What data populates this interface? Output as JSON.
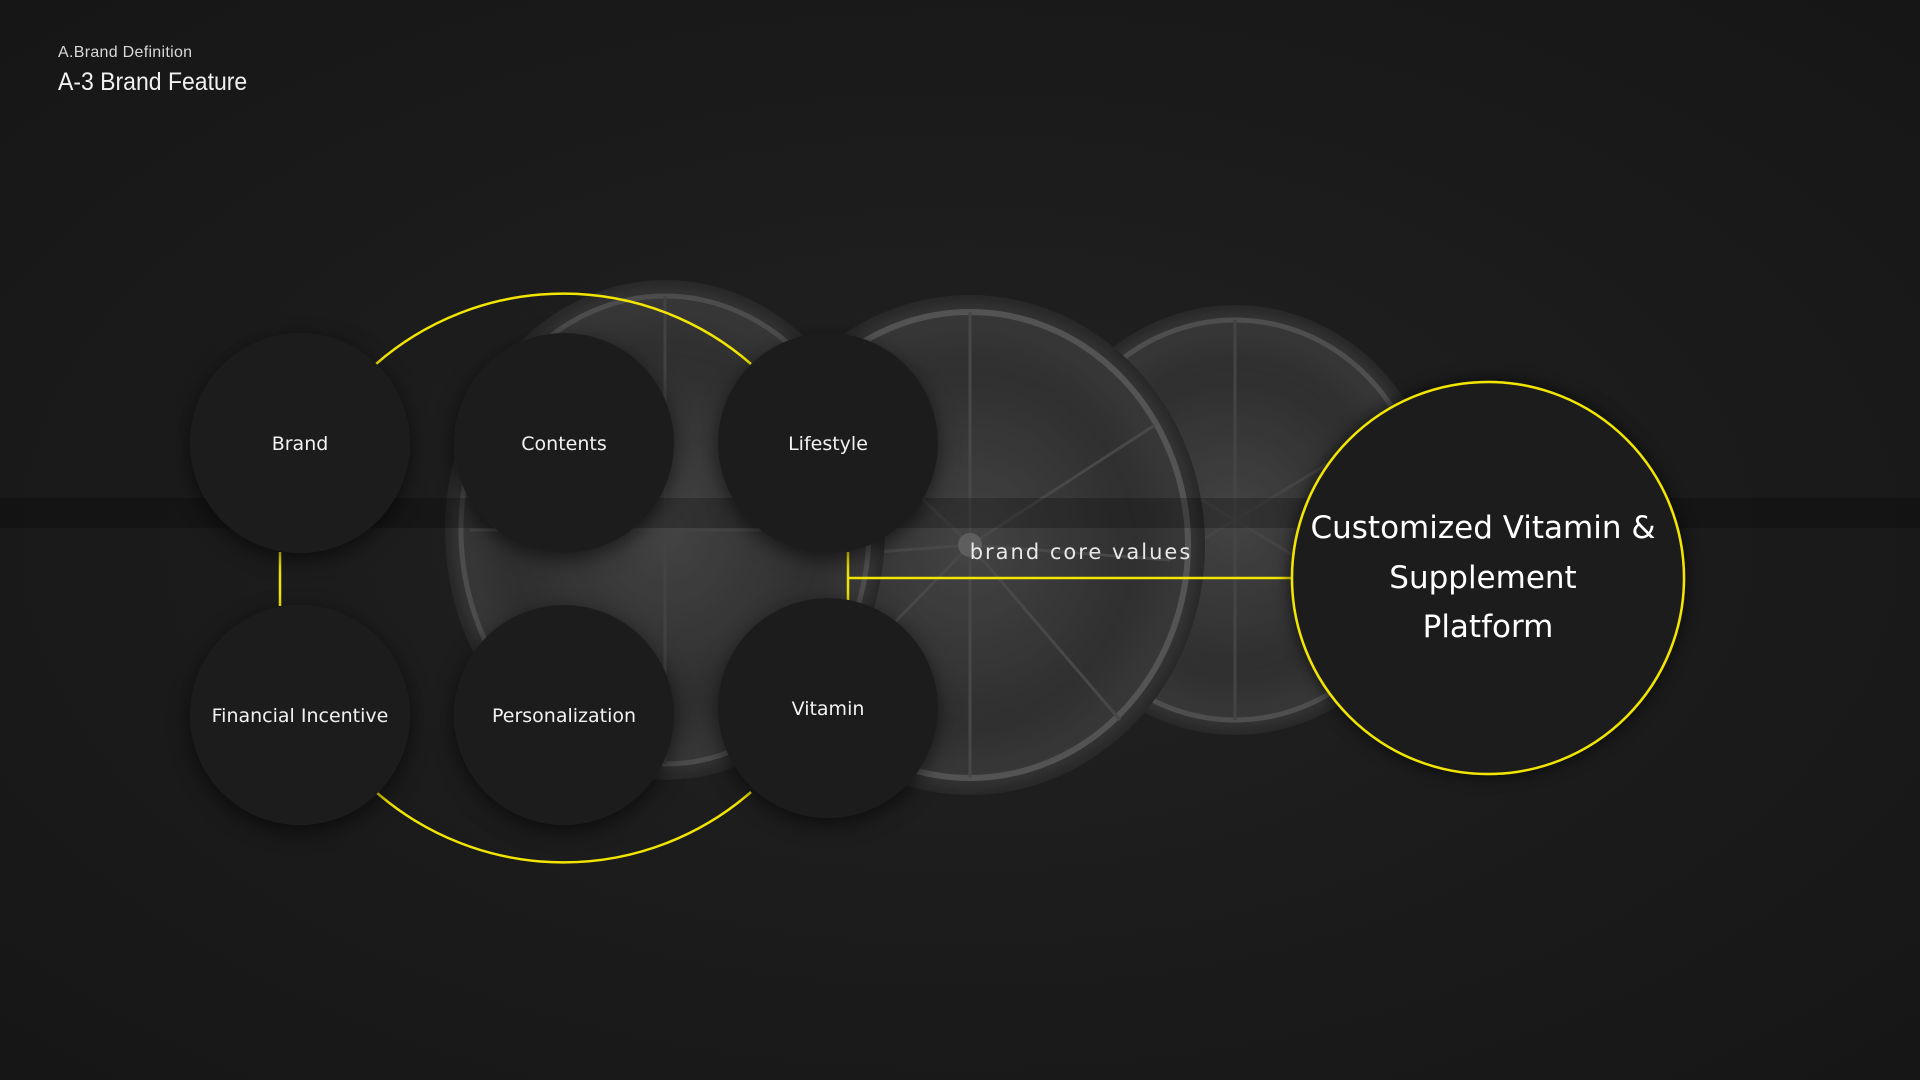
{
  "header": {
    "section": "A.Brand Definition",
    "title": "A-3 Brand Feature"
  },
  "diagram": {
    "nodes": [
      {
        "id": "brand",
        "label": "Brand"
      },
      {
        "id": "contents",
        "label": "Contents"
      },
      {
        "id": "lifestyle",
        "label": "Lifestyle"
      },
      {
        "id": "financial",
        "label": "Financial Incentive"
      },
      {
        "id": "personalization",
        "label": "Personalization"
      },
      {
        "id": "vitamin",
        "label": "Vitamin"
      }
    ],
    "connector_label": "brand core values",
    "target": {
      "lines": [
        "Customized Vitamin &",
        "Supplement",
        "Platform"
      ]
    }
  },
  "colors": {
    "background": "#1a1a1a",
    "node_fill": "#1f1f1f",
    "accent": "#f2e600",
    "text": "#ffffff"
  }
}
